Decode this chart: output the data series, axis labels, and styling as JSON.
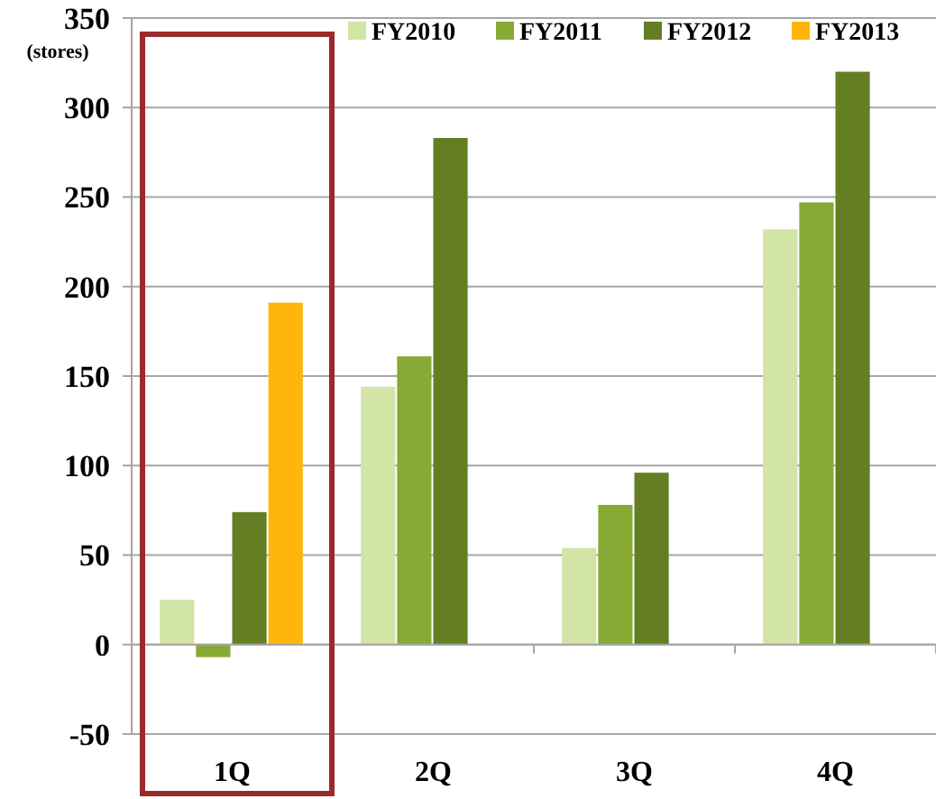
{
  "chart_data": {
    "type": "bar",
    "ylabel": "(stores)",
    "categories": [
      "1Q",
      "2Q",
      "3Q",
      "4Q"
    ],
    "series": [
      {
        "name": "FY2010",
        "color": "#d2e4a6",
        "values": [
          25,
          144,
          54,
          232
        ]
      },
      {
        "name": "FY2011",
        "color": "#86aa34",
        "values": [
          -7,
          161,
          78,
          247
        ]
      },
      {
        "name": "FY2012",
        "color": "#647e24",
        "values": [
          74,
          283,
          96,
          320
        ]
      },
      {
        "name": "FY2013",
        "color": "#ffb60a",
        "values": [
          191,
          null,
          null,
          null
        ]
      }
    ],
    "ylim": [
      -50,
      350
    ],
    "yticks": [
      -50,
      0,
      50,
      100,
      150,
      200,
      250,
      300,
      350
    ],
    "grid": "y",
    "legend": "top right"
  }
}
